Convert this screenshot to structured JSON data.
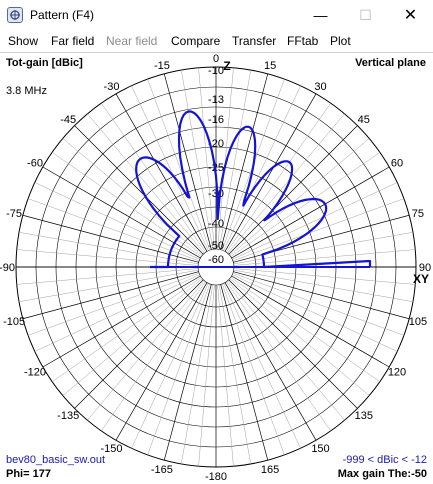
{
  "window": {
    "title": "Pattern   (F4)",
    "minimize_glyph": "—",
    "maximize_glyph": "☐",
    "close_glyph": "✕"
  },
  "menu": {
    "items": [
      {
        "label": "Show",
        "enabled": true
      },
      {
        "label": "Far field",
        "enabled": true
      },
      {
        "label": "Near field",
        "enabled": false
      },
      {
        "label": "Compare",
        "enabled": true
      },
      {
        "label": "Transfer",
        "enabled": true
      },
      {
        "label": "FFtab",
        "enabled": true
      },
      {
        "label": "Plot",
        "enabled": true
      }
    ]
  },
  "plot": {
    "gain_label": "Tot-gain [dBic]",
    "plane_label": "Vertical plane",
    "frequency": "3.8 MHz",
    "file_name": "bev80_basic_sw.out",
    "range_label": "-999 < dBic < -12",
    "phi_label": "Phi= 177",
    "max_gain_label": "Max gain The:-50",
    "axis_z": "Z",
    "axis_xy": "XY",
    "angle_labels": [
      "0",
      "15",
      "30",
      "45",
      "60",
      "75",
      "90",
      "105",
      "120",
      "135",
      "150",
      "165",
      "-180",
      "-165",
      "-150",
      "-135",
      "-120",
      "-105",
      "-90",
      "-75",
      "-60",
      "-45",
      "-30",
      "-15"
    ],
    "gain_scale_labels": [
      "-10",
      "-13",
      "-16",
      "-20",
      "-25",
      "-30",
      "-40",
      "-50",
      "-60"
    ],
    "colors": {
      "pattern": "#1414d2",
      "grid": "#000000",
      "text_blue": "#1a1ab0"
    }
  }
}
